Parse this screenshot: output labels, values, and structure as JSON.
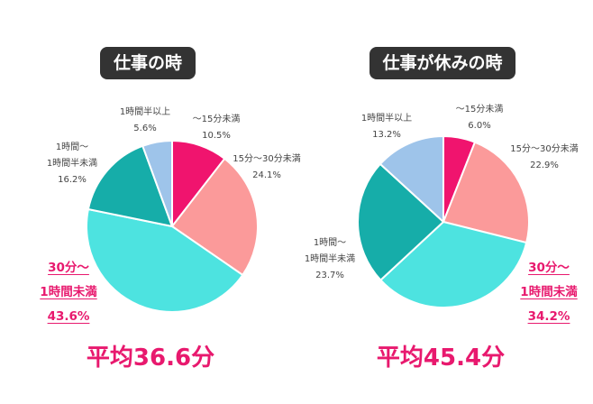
{
  "chart_data": [
    {
      "type": "pie",
      "title": "仕事の時",
      "average_label": "平均36.6分",
      "slices": [
        {
          "label": "〜15分未満",
          "value": 10.5,
          "value_label": "10.5%",
          "color": "#f0146e"
        },
        {
          "label": "15分〜30分未満",
          "value": 24.1,
          "value_label": "24.1%",
          "color": "#fb9a9a"
        },
        {
          "label": "30分〜1時間未満",
          "value": 43.6,
          "value_label": "43.6%",
          "color": "#4de3e0",
          "highlight": true
        },
        {
          "label": "1時間〜1時間半未満",
          "value": 16.2,
          "value_label": "16.2%",
          "color": "#16ada9"
        },
        {
          "label": "1時間半以上",
          "value": 5.6,
          "value_label": "5.6%",
          "color": "#9ec4ea"
        }
      ]
    },
    {
      "type": "pie",
      "title": "仕事が休みの時",
      "average_label": "平均45.4分",
      "slices": [
        {
          "label": "〜15分未満",
          "value": 6.0,
          "value_label": "6.0%",
          "color": "#f0146e"
        },
        {
          "label": "15分〜30分未満",
          "value": 22.9,
          "value_label": "22.9%",
          "color": "#fb9a9a"
        },
        {
          "label": "30分〜1時間未満",
          "value": 34.2,
          "value_label": "34.2%",
          "color": "#4de3e0",
          "highlight": true
        },
        {
          "label": "1時間〜1時間半未満",
          "value": 23.7,
          "value_label": "23.7%",
          "color": "#16ada9"
        },
        {
          "label": "1時間半以上",
          "value": 13.2,
          "value_label": "13.2%",
          "color": "#9ec4ea"
        }
      ]
    }
  ],
  "label_lines": {
    "c0": {
      "s0": [
        "〜15分未満"
      ],
      "s1": [
        "15分〜30分未満"
      ],
      "s2": [
        "30分〜",
        "1時間未満"
      ],
      "s3": [
        "1時間〜",
        "1時間半未満"
      ],
      "s4": [
        "1時間半以上"
      ]
    },
    "c1": {
      "s0": [
        "〜15分未満"
      ],
      "s1": [
        "15分〜30分未満"
      ],
      "s2": [
        "30分〜",
        "1時間未満"
      ],
      "s3": [
        "1時間〜",
        "1時間半未満"
      ],
      "s4": [
        "1時間半以上"
      ]
    }
  }
}
